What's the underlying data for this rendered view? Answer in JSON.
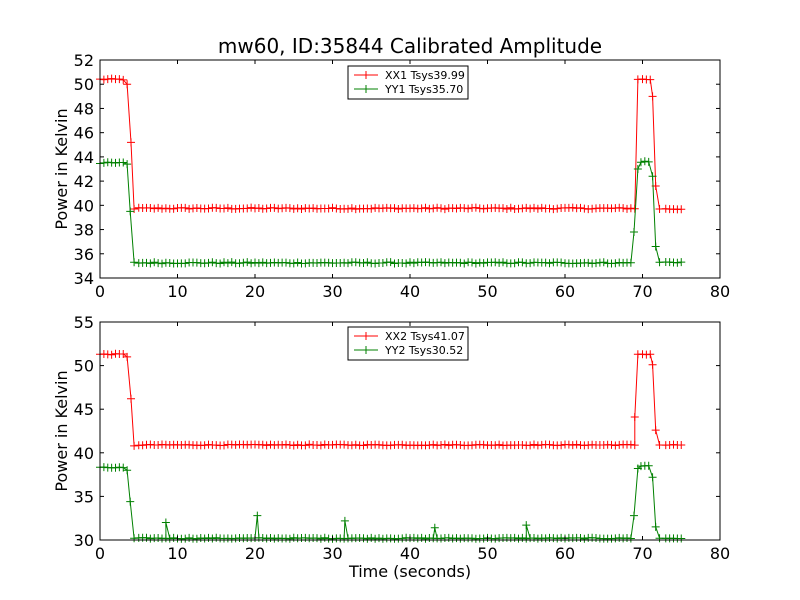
{
  "title": "mw60, ID:35844 Calibrated Amplitude",
  "chart_data": [
    {
      "type": "line",
      "ylabel": "Power in Kelvin",
      "xlabel": "",
      "xlim": [
        0,
        80
      ],
      "ylim": [
        34,
        52
      ],
      "xticks": [
        0,
        10,
        20,
        30,
        40,
        50,
        60,
        70,
        80
      ],
      "yticks": [
        34,
        36,
        38,
        40,
        42,
        44,
        46,
        48,
        50,
        52
      ],
      "grid": false,
      "legend_placement": "top-center",
      "series": [
        {
          "name": "XX1 Tsys39.99",
          "color": "#ff0000",
          "marker": "+",
          "segments": [
            {
              "x0": 0,
              "x1": 3,
              "y": 50.4
            },
            {
              "x": 3.5,
              "y": 50.0
            },
            {
              "x": 4.0,
              "y": 45.2
            },
            {
              "x": 4.4,
              "y": 39.7
            },
            {
              "x0": 5,
              "x1": 69,
              "y": 39.75
            },
            {
              "x": 69.4,
              "y": 50.4
            },
            {
              "x0": 70,
              "x1": 71,
              "y": 50.4
            },
            {
              "x": 71.3,
              "y": 49.0
            },
            {
              "x": 71.7,
              "y": 41.6
            },
            {
              "x": 72.2,
              "y": 39.7
            },
            {
              "x0": 73,
              "x1": 75,
              "y": 39.7
            }
          ]
        },
        {
          "name": "YY1 Tsys35.70",
          "color": "#008000",
          "marker": "+",
          "segments": [
            {
              "x0": 0,
              "x1": 3,
              "y": 43.5
            },
            {
              "x": 3.5,
              "y": 43.4
            },
            {
              "x": 3.9,
              "y": 39.5
            },
            {
              "x": 4.4,
              "y": 35.3
            },
            {
              "x0": 5,
              "x1": 68.5,
              "y": 35.25
            },
            {
              "x": 68.9,
              "y": 37.8
            },
            {
              "x": 69.4,
              "y": 43.0
            },
            {
              "x0": 69.8,
              "x1": 71,
              "y": 43.6
            },
            {
              "x": 71.3,
              "y": 42.4
            },
            {
              "x": 71.7,
              "y": 36.6
            },
            {
              "x": 72.2,
              "y": 35.3
            },
            {
              "x0": 73,
              "x1": 75,
              "y": 35.3
            }
          ]
        }
      ]
    },
    {
      "type": "line",
      "ylabel": "Power in Kelvin",
      "xlabel": "Time (seconds)",
      "xlim": [
        0,
        80
      ],
      "ylim": [
        30,
        55
      ],
      "xticks": [
        0,
        10,
        20,
        30,
        40,
        50,
        60,
        70,
        80
      ],
      "yticks": [
        30,
        35,
        40,
        45,
        50,
        55
      ],
      "grid": false,
      "legend_placement": "top-center",
      "series": [
        {
          "name": "XX2 Tsys41.07",
          "color": "#ff0000",
          "marker": "+",
          "segments": [
            {
              "x0": 0,
              "x1": 3,
              "y": 51.3
            },
            {
              "x": 3.5,
              "y": 51.0
            },
            {
              "x": 4.0,
              "y": 46.2
            },
            {
              "x": 4.4,
              "y": 40.8
            },
            {
              "x0": 5,
              "x1": 69,
              "y": 40.9
            },
            {
              "x": 69.0,
              "y": 44.1
            },
            {
              "x": 69.4,
              "y": 51.3
            },
            {
              "x0": 70,
              "x1": 71,
              "y": 51.3
            },
            {
              "x": 71.3,
              "y": 50.1
            },
            {
              "x": 71.7,
              "y": 42.6
            },
            {
              "x": 72.2,
              "y": 40.9
            },
            {
              "x0": 73,
              "x1": 75,
              "y": 40.9
            }
          ]
        },
        {
          "name": "YY2 Tsys30.52",
          "color": "#008000",
          "marker": "+",
          "segments": [
            {
              "x0": 0,
              "x1": 3,
              "y": 38.3
            },
            {
              "x": 3.5,
              "y": 38.0
            },
            {
              "x": 3.9,
              "y": 34.4
            },
            {
              "x": 4.4,
              "y": 30.2
            },
            {
              "x0": 5,
              "x1": 68.5,
              "y": 30.2
            },
            {
              "x": 68.9,
              "y": 32.8
            },
            {
              "x": 69.4,
              "y": 38.2
            },
            {
              "x0": 69.8,
              "x1": 71,
              "y": 38.5
            },
            {
              "x": 71.3,
              "y": 37.2
            },
            {
              "x": 71.7,
              "y": 31.5
            },
            {
              "x": 72.2,
              "y": 30.2
            },
            {
              "x0": 73,
              "x1": 75,
              "y": 30.2
            }
          ],
          "spikes": [
            {
              "x": 8.5,
              "y": 32.0
            },
            {
              "x": 20.3,
              "y": 32.8
            },
            {
              "x": 31.6,
              "y": 32.2
            },
            {
              "x": 43.2,
              "y": 31.4
            },
            {
              "x": 55.0,
              "y": 31.7
            }
          ]
        }
      ]
    }
  ]
}
